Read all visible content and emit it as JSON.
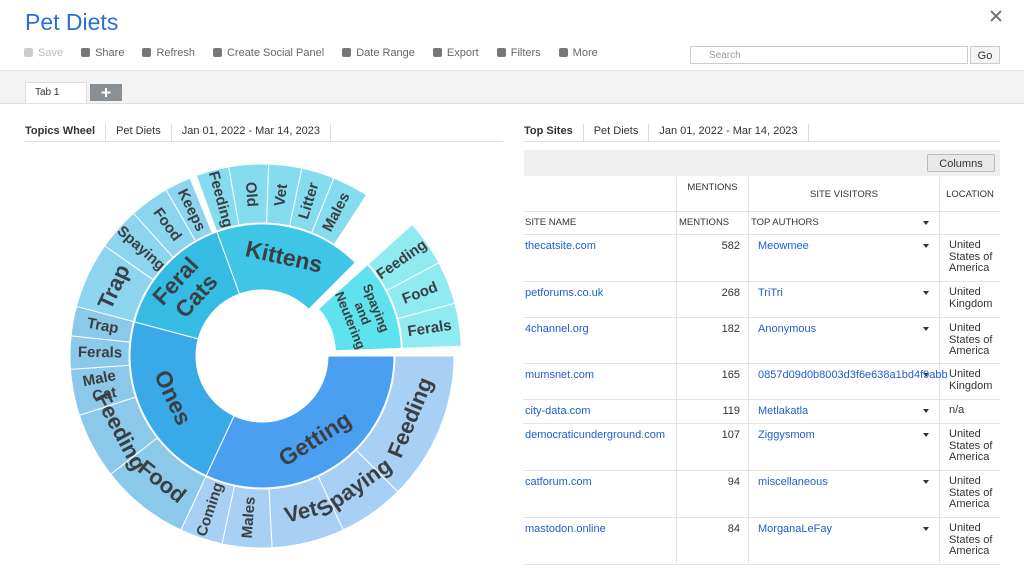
{
  "header": {
    "title": "Pet Diets",
    "toolbar": [
      "Save",
      "Share",
      "Refresh",
      "Create Social Panel",
      "Date Range",
      "Export",
      "Filters",
      "More"
    ],
    "search_placeholder": "Search",
    "go": "Go"
  },
  "tabs": [
    "Tab 1"
  ],
  "left_panel": {
    "tabs": [
      "Topics Wheel",
      "Pet Diets",
      "Jan 01, 2022 - Mar 14, 2023"
    ],
    "wheel": [
      {
        "label": "Kittens",
        "children": [
          "Feeding",
          "Old",
          "Vet",
          "Litter",
          "Males"
        ]
      },
      {
        "label": "Spaying and Neutering",
        "children": [
          "Feeding",
          "Food",
          "Ferals"
        ]
      },
      {
        "label": "Getting",
        "children": [
          "Feeding",
          "Spaying",
          "Vet",
          "Males",
          "Coming"
        ]
      },
      {
        "label": "Ones",
        "children": [
          "Food",
          "Feeding",
          "Male Cat",
          "Ferals",
          "Trap"
        ]
      },
      {
        "label": "Feral Cats",
        "children": [
          "Trap",
          "Spaying",
          "Food",
          "Keeps"
        ]
      }
    ]
  },
  "right_panel": {
    "tabs": [
      "Top Sites",
      "Pet Diets",
      "Jan 01, 2022 - Mar 14, 2023"
    ],
    "columns_button": "Columns",
    "header_top": [
      "MENTIONS",
      "SITE VISITORS",
      "LOCATION"
    ],
    "header": [
      "SITE NAME",
      "MENTIONS",
      "TOP AUTHORS"
    ],
    "rows": [
      {
        "site": "thecatsite.com",
        "mentions": 582,
        "author": "Meowmee",
        "location": "United States of America"
      },
      {
        "site": "petforums.co.uk",
        "mentions": 268,
        "author": "TriTri",
        "location": "United Kingdom"
      },
      {
        "site": "4channel.org",
        "mentions": 182,
        "author": "Anonymous",
        "location": "United States of America"
      },
      {
        "site": "mumsnet.com",
        "mentions": 165,
        "author": "0857d09d0b8003d3f6e638a1bd4f9abb",
        "location": "United Kingdom"
      },
      {
        "site": "city-data.com",
        "mentions": 119,
        "author": "Metlakatla",
        "location": "n/a"
      },
      {
        "site": "democraticunderground.com",
        "mentions": 107,
        "author": "Ziggysmom",
        "location": "United States of America"
      },
      {
        "site": "catforum.com",
        "mentions": 94,
        "author": "miscellaneous",
        "location": "United States of America"
      },
      {
        "site": "mastodon.online",
        "mentions": 84,
        "author": "MorganaLeFay",
        "location": "United States of America"
      }
    ]
  }
}
